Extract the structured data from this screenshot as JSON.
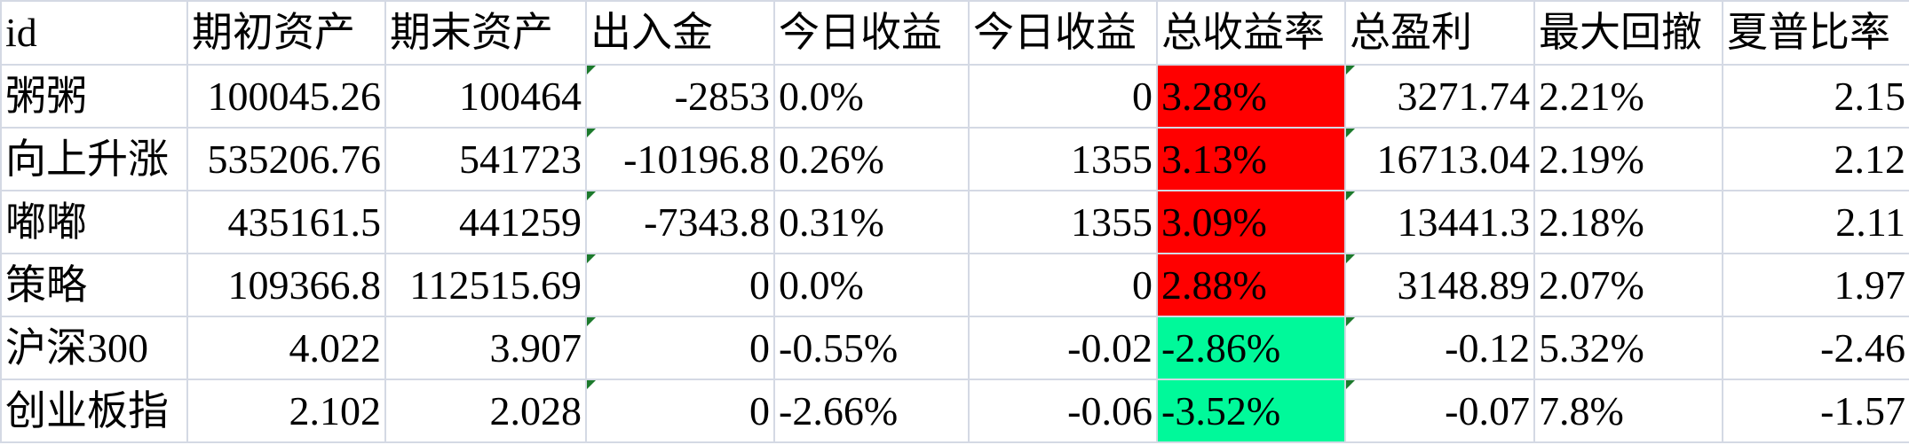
{
  "headers": [
    "id",
    "期初资产",
    "期末资产",
    "出入金",
    "今日收益",
    "今日收益",
    "总收益率",
    "总盈利",
    "最大回撤",
    "夏普比率"
  ],
  "rows": [
    {
      "id": "粥粥",
      "start": "100045.26",
      "end": "100464",
      "flow": "-2853",
      "today_pct": "0.0%",
      "today_amt": "0",
      "total_rate": "3.28%",
      "total_profit": "3271.74",
      "max_dd": "2.21%",
      "sharpe": "2.15",
      "rate_sign": "positive"
    },
    {
      "id": "向上升涨",
      "start": "535206.76",
      "end": "541723",
      "flow": "-10196.8",
      "today_pct": "0.26%",
      "today_amt": "1355",
      "total_rate": "3.13%",
      "total_profit": "16713.04",
      "max_dd": "2.19%",
      "sharpe": "2.12",
      "rate_sign": "positive"
    },
    {
      "id": "嘟嘟",
      "start": "435161.5",
      "end": "441259",
      "flow": "-7343.8",
      "today_pct": "0.31%",
      "today_amt": "1355",
      "total_rate": "3.09%",
      "total_profit": "13441.3",
      "max_dd": "2.18%",
      "sharpe": "2.11",
      "rate_sign": "positive"
    },
    {
      "id": "策略",
      "start": "109366.8",
      "end": "112515.69",
      "flow": "0",
      "today_pct": "0.0%",
      "today_amt": "0",
      "total_rate": "2.88%",
      "total_profit": "3148.89",
      "max_dd": "2.07%",
      "sharpe": "1.97",
      "rate_sign": "positive"
    },
    {
      "id": "沪深300",
      "start": "4.022",
      "end": "3.907",
      "flow": "0",
      "today_pct": "-0.55%",
      "today_amt": "-0.02",
      "total_rate": "-2.86%",
      "total_profit": "-0.12",
      "max_dd": "5.32%",
      "sharpe": "-2.46",
      "rate_sign": "negative"
    },
    {
      "id": "创业板指",
      "start": "2.102",
      "end": "2.028",
      "flow": "0",
      "today_pct": "-2.66%",
      "today_amt": "-0.06",
      "total_rate": "-3.52%",
      "total_profit": "-0.07",
      "max_dd": "7.8%",
      "sharpe": "-1.57",
      "rate_sign": "negative"
    }
  ],
  "colors": {
    "positive_fill": "#ff0000",
    "negative_fill": "#00f99a",
    "grid_line": "#d4d9e4",
    "text_marker": "#1c7a2c"
  }
}
